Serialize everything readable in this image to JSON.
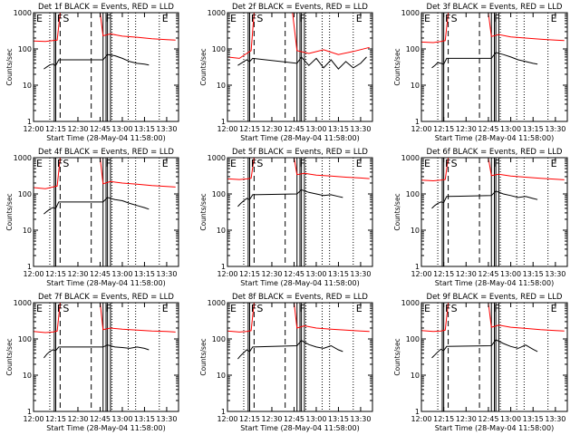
{
  "chart_data": [
    {
      "type": "line",
      "title": "Det 1f BLACK = Events, RED = LLD",
      "xlabel": "Start Time (28-May-04 11:58:00)",
      "ylabel": "Counts/sec",
      "yscale": "log",
      "ylim": [
        1,
        1000
      ],
      "xlim": [
        "12:00",
        "13:38"
      ],
      "x_ticks": [
        "12:00",
        "12:15",
        "12:30",
        "12:45",
        "13:00",
        "13:15",
        "13:30"
      ],
      "y_ticks": [
        "1",
        "10",
        "100",
        "1000"
      ],
      "flags": [
        "E",
        "F",
        "S",
        "F",
        "E"
      ],
      "grid": false,
      "series": [
        {
          "color": "#000000",
          "x": [
            "12:07",
            "12:09",
            "12:11",
            "12:13",
            "12:15",
            "12:17",
            "12:47",
            "12:50",
            "12:55",
            "13:00",
            "13:05",
            "13:10",
            "13:15",
            "13:18"
          ],
          "values": [
            28,
            32,
            36,
            38,
            35,
            50,
            50,
            70,
            65,
            55,
            45,
            40,
            38,
            36
          ]
        },
        {
          "color": "#ff0000",
          "x": [
            "12:00",
            "12:08",
            "12:13",
            "12:16",
            "12:18",
            "12:45",
            "12:47",
            "12:52",
            "13:00",
            "13:10",
            "13:20",
            "13:30",
            "13:36"
          ],
          "values": [
            165,
            160,
            170,
            175,
            1000,
            1000,
            230,
            260,
            225,
            210,
            190,
            180,
            175
          ]
        }
      ]
    },
    {
      "type": "line",
      "title": "Det 2f BLACK = Events, RED = LLD",
      "xlabel": "Start Time (28-May-04 11:58:00)",
      "ylabel": "Counts/sec",
      "yscale": "log",
      "ylim": [
        1,
        1000
      ],
      "xlim": [
        "12:00",
        "13:38"
      ],
      "x_ticks": [
        "12:00",
        "12:15",
        "12:30",
        "12:45",
        "13:00",
        "13:15",
        "13:30"
      ],
      "y_ticks": [
        "1",
        "10",
        "100",
        "1000"
      ],
      "flags": [
        "E",
        "F",
        "S",
        "F",
        "E"
      ],
      "grid": false,
      "series": [
        {
          "color": "#000000",
          "x": [
            "12:07",
            "12:10",
            "12:13",
            "12:15",
            "12:17",
            "12:47",
            "12:50",
            "12:55",
            "13:00",
            "13:05",
            "13:10",
            "13:15",
            "13:20",
            "13:25",
            "13:30",
            "13:34"
          ],
          "values": [
            35,
            42,
            50,
            45,
            55,
            40,
            60,
            35,
            55,
            30,
            50,
            28,
            45,
            30,
            40,
            60
          ]
        },
        {
          "color": "#ff0000",
          "x": [
            "12:00",
            "12:08",
            "12:13",
            "12:16",
            "12:18",
            "12:44",
            "12:47",
            "12:55",
            "13:05",
            "13:15",
            "13:25",
            "13:36"
          ],
          "values": [
            60,
            55,
            75,
            90,
            1000,
            1000,
            90,
            75,
            95,
            70,
            85,
            110
          ]
        }
      ]
    },
    {
      "type": "line",
      "title": "Det 3f BLACK = Events, RED = LLD",
      "xlabel": "Start Time (28-May-04 11:58:00)",
      "ylabel": "Counts/sec",
      "yscale": "log",
      "ylim": [
        1,
        1000
      ],
      "xlim": [
        "12:00",
        "13:38"
      ],
      "x_ticks": [
        "12:00",
        "12:15",
        "12:30",
        "12:45",
        "13:00",
        "13:15",
        "13:30"
      ],
      "y_ticks": [
        "1",
        "10",
        "100",
        "1000"
      ],
      "flags": [
        "E",
        "F",
        "S",
        "F",
        "E"
      ],
      "grid": false,
      "series": [
        {
          "color": "#000000",
          "x": [
            "12:07",
            "12:09",
            "12:11",
            "12:13",
            "12:15",
            "12:17",
            "12:47",
            "12:50",
            "12:55",
            "13:00",
            "13:05",
            "13:10",
            "13:15",
            "13:18"
          ],
          "values": [
            30,
            35,
            42,
            40,
            38,
            55,
            55,
            80,
            70,
            60,
            50,
            45,
            40,
            38
          ]
        },
        {
          "color": "#ff0000",
          "x": [
            "12:00",
            "12:08",
            "12:13",
            "12:16",
            "12:18",
            "12:45",
            "12:47",
            "12:52",
            "13:00",
            "13:10",
            "13:20",
            "13:30",
            "13:36"
          ],
          "values": [
            155,
            150,
            160,
            170,
            1000,
            1000,
            220,
            250,
            215,
            200,
            185,
            175,
            170
          ]
        }
      ]
    },
    {
      "type": "line",
      "title": "Det 4f BLACK = Events, RED = LLD",
      "xlabel": "Start Time (28-May-04 11:58:00)",
      "ylabel": "Counts/sec",
      "yscale": "log",
      "ylim": [
        1,
        1000
      ],
      "xlim": [
        "12:00",
        "13:38"
      ],
      "x_ticks": [
        "12:00",
        "12:15",
        "12:30",
        "12:45",
        "13:00",
        "13:15",
        "13:30"
      ],
      "y_ticks": [
        "1",
        "10",
        "100",
        "1000"
      ],
      "flags": [
        "E",
        "F",
        "S",
        "F",
        "E"
      ],
      "grid": false,
      "series": [
        {
          "color": "#000000",
          "x": [
            "12:07",
            "12:09",
            "12:11",
            "12:13",
            "12:15",
            "12:17",
            "12:47",
            "12:50",
            "12:55",
            "13:00",
            "13:05",
            "13:10",
            "13:15",
            "13:18"
          ],
          "values": [
            28,
            33,
            38,
            42,
            40,
            60,
            60,
            80,
            70,
            65,
            55,
            48,
            42,
            38
          ]
        },
        {
          "color": "#ff0000",
          "x": [
            "12:00",
            "12:08",
            "12:13",
            "12:16",
            "12:18",
            "12:45",
            "12:47",
            "12:52",
            "13:00",
            "13:10",
            "13:20",
            "13:30",
            "13:36"
          ],
          "values": [
            150,
            140,
            155,
            165,
            1000,
            1000,
            190,
            220,
            200,
            185,
            170,
            160,
            155
          ]
        }
      ]
    },
    {
      "type": "line",
      "title": "Det 5f BLACK = Events, RED = LLD",
      "xlabel": "Start Time (28-May-04 11:58:00)",
      "ylabel": "Counts/sec",
      "yscale": "log",
      "ylim": [
        1,
        1000
      ],
      "xlim": [
        "12:00",
        "13:38"
      ],
      "x_ticks": [
        "12:00",
        "12:15",
        "12:30",
        "12:45",
        "13:00",
        "13:15",
        "13:30"
      ],
      "y_ticks": [
        "1",
        "10",
        "100",
        "1000"
      ],
      "flags": [
        "E",
        "F",
        "S",
        "F",
        "E"
      ],
      "grid": false,
      "series": [
        {
          "color": "#000000",
          "x": [
            "12:07",
            "12:09",
            "12:11",
            "12:13",
            "12:15",
            "12:17",
            "12:47",
            "12:50",
            "12:55",
            "13:00",
            "13:05",
            "13:10",
            "13:15",
            "13:18"
          ],
          "values": [
            45,
            55,
            65,
            75,
            70,
            95,
            100,
            130,
            110,
            100,
            90,
            95,
            85,
            80
          ]
        },
        {
          "color": "#ff0000",
          "x": [
            "12:00",
            "12:08",
            "12:13",
            "12:16",
            "12:18",
            "12:45",
            "12:47",
            "12:52",
            "13:00",
            "13:10",
            "13:20",
            "13:30",
            "13:36"
          ],
          "values": [
            260,
            250,
            260,
            270,
            1000,
            1000,
            340,
            370,
            330,
            310,
            290,
            275,
            265
          ]
        }
      ]
    },
    {
      "type": "line",
      "title": "Det 6f BLACK = Events, RED = LLD",
      "xlabel": "Start Time (28-May-04 11:58:00)",
      "ylabel": "Counts/sec",
      "yscale": "log",
      "ylim": [
        1,
        1000
      ],
      "xlim": [
        "12:00",
        "13:38"
      ],
      "x_ticks": [
        "12:00",
        "12:15",
        "12:30",
        "12:45",
        "13:00",
        "13:15",
        "13:30"
      ],
      "y_ticks": [
        "1",
        "10",
        "100",
        "1000"
      ],
      "flags": [
        "E",
        "F",
        "S",
        "F",
        "E"
      ],
      "grid": false,
      "series": [
        {
          "color": "#000000",
          "x": [
            "12:07",
            "12:09",
            "12:11",
            "12:13",
            "12:15",
            "12:17",
            "12:47",
            "12:50",
            "12:55",
            "13:00",
            "13:05",
            "13:10",
            "13:15",
            "13:18"
          ],
          "values": [
            40,
            48,
            55,
            60,
            58,
            85,
            90,
            120,
            100,
            90,
            80,
            85,
            75,
            70
          ]
        },
        {
          "color": "#ff0000",
          "x": [
            "12:00",
            "12:08",
            "12:13",
            "12:16",
            "12:18",
            "12:45",
            "12:47",
            "12:52",
            "13:00",
            "13:10",
            "13:20",
            "13:30",
            "13:36"
          ],
          "values": [
            240,
            230,
            240,
            250,
            1000,
            1000,
            320,
            350,
            310,
            290,
            270,
            255,
            245
          ]
        }
      ]
    },
    {
      "type": "line",
      "title": "Det 7f BLACK = Events, RED = LLD",
      "xlabel": "Start Time (28-May-04 11:58:00)",
      "ylabel": "Counts/sec",
      "yscale": "log",
      "ylim": [
        1,
        1000
      ],
      "xlim": [
        "12:00",
        "13:38"
      ],
      "x_ticks": [
        "12:00",
        "12:15",
        "12:30",
        "12:45",
        "13:00",
        "13:15",
        "13:30"
      ],
      "y_ticks": [
        "1",
        "10",
        "100",
        "1000"
      ],
      "flags": [
        "E",
        "F",
        "S",
        "F",
        "E"
      ],
      "grid": false,
      "series": [
        {
          "color": "#000000",
          "x": [
            "12:07",
            "12:09",
            "12:11",
            "12:13",
            "12:15",
            "12:17",
            "12:47",
            "12:50",
            "12:55",
            "13:00",
            "13:05",
            "13:10",
            "13:15",
            "13:18"
          ],
          "values": [
            30,
            38,
            45,
            50,
            48,
            60,
            60,
            68,
            60,
            58,
            55,
            60,
            55,
            50
          ]
        },
        {
          "color": "#ff0000",
          "x": [
            "12:00",
            "12:08",
            "12:13",
            "12:16",
            "12:18",
            "12:45",
            "12:47",
            "12:52",
            "13:00",
            "13:10",
            "13:20",
            "13:30",
            "13:36"
          ],
          "values": [
            160,
            150,
            155,
            165,
            1000,
            1000,
            180,
            200,
            185,
            175,
            165,
            160,
            155
          ]
        }
      ]
    },
    {
      "type": "line",
      "title": "Det 8f BLACK = Events, RED = LLD",
      "xlabel": "Start Time (28-May-04 11:58:00)",
      "ylabel": "Counts/sec",
      "yscale": "log",
      "ylim": [
        1,
        1000
      ],
      "xlim": [
        "12:00",
        "13:38"
      ],
      "x_ticks": [
        "12:00",
        "12:15",
        "12:30",
        "12:45",
        "13:00",
        "13:15",
        "13:30"
      ],
      "y_ticks": [
        "1",
        "10",
        "100",
        "1000"
      ],
      "flags": [
        "E",
        "F",
        "S",
        "F",
        "E"
      ],
      "grid": false,
      "series": [
        {
          "color": "#000000",
          "x": [
            "12:07",
            "12:09",
            "12:11",
            "12:13",
            "12:15",
            "12:17",
            "12:47",
            "12:50",
            "12:55",
            "13:00",
            "13:05",
            "13:10",
            "13:15",
            "13:18"
          ],
          "values": [
            28,
            35,
            42,
            50,
            45,
            60,
            65,
            90,
            70,
            60,
            55,
            65,
            50,
            45
          ]
        },
        {
          "color": "#ff0000",
          "x": [
            "12:00",
            "12:08",
            "12:13",
            "12:16",
            "12:18",
            "12:45",
            "12:47",
            "12:52",
            "13:00",
            "13:10",
            "13:20",
            "13:30",
            "13:36"
          ],
          "values": [
            165,
            155,
            160,
            170,
            1000,
            1000,
            200,
            230,
            200,
            185,
            175,
            165,
            160
          ]
        }
      ]
    },
    {
      "type": "line",
      "title": "Det 9f BLACK = Events, RED = LLD",
      "xlabel": "Start Time (28-May-04 11:58:00)",
      "ylabel": "Counts/sec",
      "yscale": "log",
      "ylim": [
        1,
        1000
      ],
      "xlim": [
        "12:00",
        "13:38"
      ],
      "x_ticks": [
        "12:00",
        "12:15",
        "12:30",
        "12:45",
        "13:00",
        "13:15",
        "13:30"
      ],
      "y_ticks": [
        "1",
        "10",
        "100",
        "1000"
      ],
      "flags": [
        "E",
        "F",
        "S",
        "F",
        "E"
      ],
      "grid": false,
      "series": [
        {
          "color": "#000000",
          "x": [
            "12:07",
            "12:09",
            "12:11",
            "12:13",
            "12:15",
            "12:17",
            "12:47",
            "12:50",
            "12:55",
            "13:00",
            "13:05",
            "13:10",
            "13:15",
            "13:18"
          ],
          "values": [
            30,
            36,
            44,
            52,
            48,
            62,
            65,
            95,
            75,
            62,
            55,
            68,
            52,
            45
          ]
        },
        {
          "color": "#ff0000",
          "x": [
            "12:00",
            "12:08",
            "12:13",
            "12:16",
            "12:18",
            "12:45",
            "12:47",
            "12:52",
            "13:00",
            "13:10",
            "13:20",
            "13:30",
            "13:36"
          ],
          "values": [
            170,
            160,
            165,
            175,
            1000,
            1000,
            210,
            240,
            210,
            195,
            180,
            170,
            165
          ]
        }
      ]
    }
  ],
  "markers": {
    "dotted_minutes": [
      "12:11",
      "12:53",
      "13:04",
      "13:09",
      "13:25"
    ],
    "dashed_minutes": [
      "12:18",
      "12:39"
    ],
    "solid_minutes": [
      "12:14",
      "12:15",
      "12:47",
      "12:49",
      "12:50",
      "12:52"
    ],
    "flag_minutes": [
      "12:00",
      "12:14",
      "12:18",
      "12:47",
      "13:25"
    ]
  },
  "colors": {
    "events": "#000000",
    "lld": "#ff0000"
  }
}
